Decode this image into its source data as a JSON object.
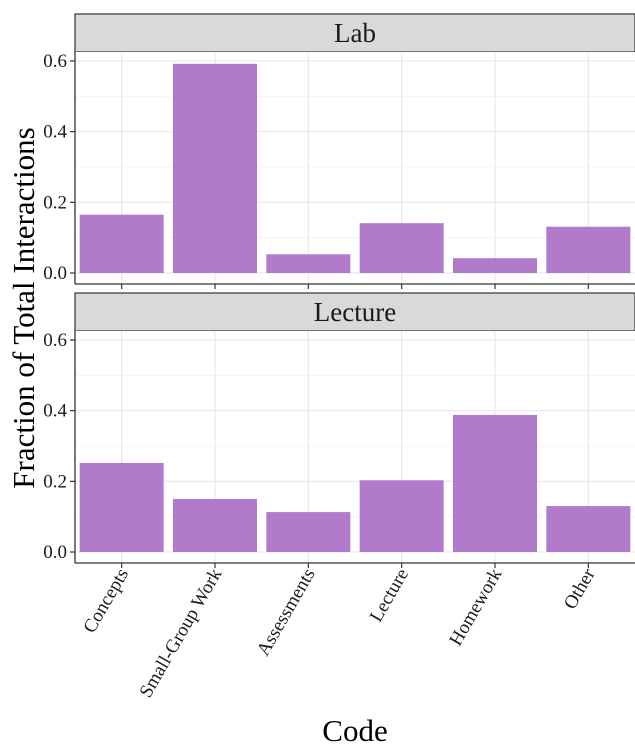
{
  "chart_data": {
    "type": "bar",
    "xlabel": "Code",
    "ylabel": "Fraction of Total Interactions",
    "ylim": [
      0,
      0.62
    ],
    "yticks": [
      "0.0",
      "0.2",
      "0.4",
      "0.6"
    ],
    "categories": [
      "Concepts",
      "Small-Group Work",
      "Assessments",
      "Lecture",
      "Homework",
      "Other"
    ],
    "grid": true,
    "bar_color": "#b27acb",
    "facets": [
      {
        "label": "Lab",
        "values": [
          0.165,
          0.592,
          0.053,
          0.141,
          0.042,
          0.131
        ]
      },
      {
        "label": "Lecture",
        "values": [
          0.252,
          0.15,
          0.113,
          0.203,
          0.388,
          0.13
        ]
      }
    ]
  }
}
